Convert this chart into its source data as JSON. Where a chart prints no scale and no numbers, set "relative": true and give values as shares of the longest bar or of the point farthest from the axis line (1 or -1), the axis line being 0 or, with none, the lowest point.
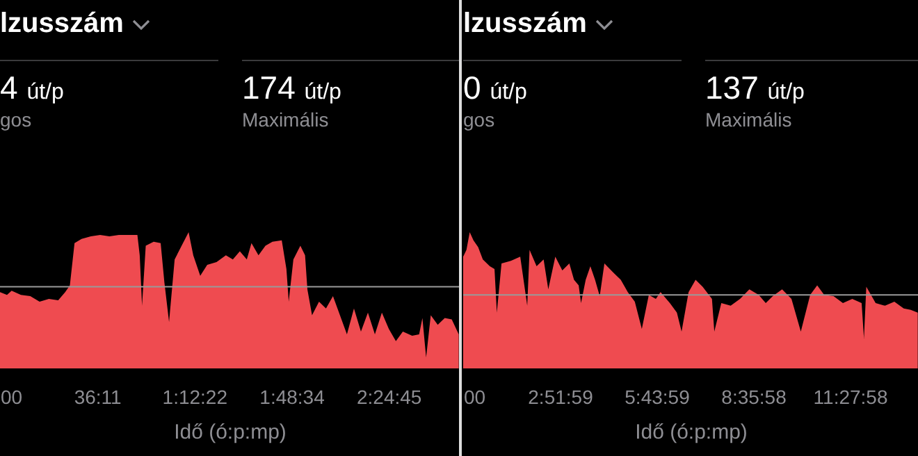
{
  "chart_data": [
    {
      "type": "area",
      "title": "lzusszám",
      "annotations": [
        "4 út/p",
        "gos",
        "174 út/p",
        "Maximális"
      ],
      "xlabel": "Idő (ó:p:mp)",
      "relative": true,
      "grid": false,
      "x": [
        0,
        156,
        260,
        468,
        677,
        885,
        1093,
        1301,
        1457,
        1562,
        1666,
        1822,
        2030,
        2238,
        2446,
        2655,
        2863,
        3071,
        3123,
        3175,
        3258,
        3435,
        3591,
        3675,
        3779,
        3904,
        4060,
        4216,
        4320,
        4476,
        4632,
        4841,
        5049,
        5205,
        5361,
        5517,
        5621,
        5778,
        5934,
        6090,
        6298,
        6402,
        6454,
        6558,
        6714,
        6819,
        6871,
        6975,
        7131,
        7287,
        7443,
        7599,
        7755,
        7912,
        8068,
        8224,
        8380,
        8536,
        8692,
        8849,
        9005,
        9213,
        9369,
        9442,
        9525,
        9629,
        9785,
        9942,
        10098,
        10254
      ],
      "series": [
        {
          "color": "#ef4b50",
          "values": [
            0.56,
            0.54,
            0.57,
            0.54,
            0.53,
            0.49,
            0.51,
            0.5,
            0.56,
            0.61,
            0.92,
            0.95,
            0.97,
            0.98,
            0.97,
            0.98,
            0.98,
            0.98,
            0.83,
            0.46,
            0.9,
            0.93,
            0.92,
            0.63,
            0.34,
            0.8,
            0.9,
            1,
            0.83,
            0.68,
            0.76,
            0.78,
            0.83,
            0.8,
            0.86,
            0.8,
            0.92,
            0.83,
            0.9,
            0.93,
            0.94,
            0.73,
            0.49,
            0.8,
            0.9,
            0.83,
            0.58,
            0.39,
            0.49,
            0.44,
            0.53,
            0.39,
            0.25,
            0.44,
            0.27,
            0.41,
            0.25,
            0.41,
            0.29,
            0.2,
            0.27,
            0.24,
            0.25,
            0.37,
            0.08,
            0.39,
            0.32,
            0.37,
            0.36,
            0.25
          ]
        }
      ],
      "xlim": [
        0,
        10260
      ],
      "xticks": [
        {
          "value": 0,
          "label": "00"
        },
        {
          "value": 2171,
          "label": "36:11"
        },
        {
          "value": 4342,
          "label": "1:12:22"
        },
        {
          "value": 6514,
          "label": "1:48:34"
        },
        {
          "value": 8685,
          "label": "2:24:45"
        }
      ],
      "ref_lines": [
        {
          "axis": "y",
          "value": 0.6,
          "color": "#9a9a9a"
        }
      ]
    },
    {
      "type": "area",
      "title": "lzusszám",
      "annotations": [
        "0 út/p",
        "gos",
        "137 út/p",
        "Maximális"
      ],
      "xlabel": "Idő (ó:p:mp)",
      "relative": true,
      "grid": false,
      "x": [
        0,
        349,
        699,
        1098,
        1597,
        2097,
        2845,
        3345,
        3594,
        4093,
        5092,
        6090,
        6839,
        7089,
        7838,
        8586,
        9085,
        9834,
        10583,
        11332,
        11831,
        12330,
        12580,
        13079,
        13578,
        14077,
        14577,
        15076,
        16074,
        16823,
        17572,
        18321,
        19069,
        19818,
        20567,
        21066,
        22065,
        22813,
        23313,
        24061,
        24810,
        25559,
        26557,
        26807,
        27556,
        28554,
        29553,
        30550,
        31549,
        32298,
        33047,
        34045,
        35044,
        36042,
        37040,
        37789,
        38538,
        39536,
        40535,
        41533,
        42532,
        42781,
        43031,
        44029,
        45028,
        46026,
        47025,
        47773,
        48522
      ],
      "series": [
        {
          "color": "#ef4b50",
          "values": [
            0.82,
            0.87,
            1,
            0.94,
            0.89,
            0.8,
            0.75,
            0.73,
            0.41,
            0.77,
            0.79,
            0.82,
            0.46,
            0.87,
            0.75,
            0.8,
            0.58,
            0.82,
            0.72,
            0.77,
            0.65,
            0.61,
            0.48,
            0.65,
            0.75,
            0.65,
            0.53,
            0.77,
            0.7,
            0.65,
            0.56,
            0.49,
            0.29,
            0.54,
            0.51,
            0.56,
            0.48,
            0.41,
            0.27,
            0.56,
            0.65,
            0.6,
            0.51,
            0.27,
            0.48,
            0.46,
            0.51,
            0.58,
            0.54,
            0.48,
            0.53,
            0.58,
            0.51,
            0.27,
            0.54,
            0.61,
            0.54,
            0.53,
            0.48,
            0.51,
            0.48,
            0.22,
            0.6,
            0.48,
            0.46,
            0.49,
            0.44,
            0.43,
            0.41
          ]
        }
      ],
      "xlim": [
        0,
        48550
      ],
      "xticks": [
        {
          "value": 0,
          "label": "00"
        },
        {
          "value": 10319,
          "label": "2:51:59"
        },
        {
          "value": 20639,
          "label": "5:43:59"
        },
        {
          "value": 30958,
          "label": "8:35:58"
        },
        {
          "value": 41278,
          "label": "11:27:58"
        }
      ],
      "ref_lines": [
        {
          "axis": "y",
          "value": 0.54,
          "color": "#9a9a9a"
        }
      ]
    }
  ]
}
